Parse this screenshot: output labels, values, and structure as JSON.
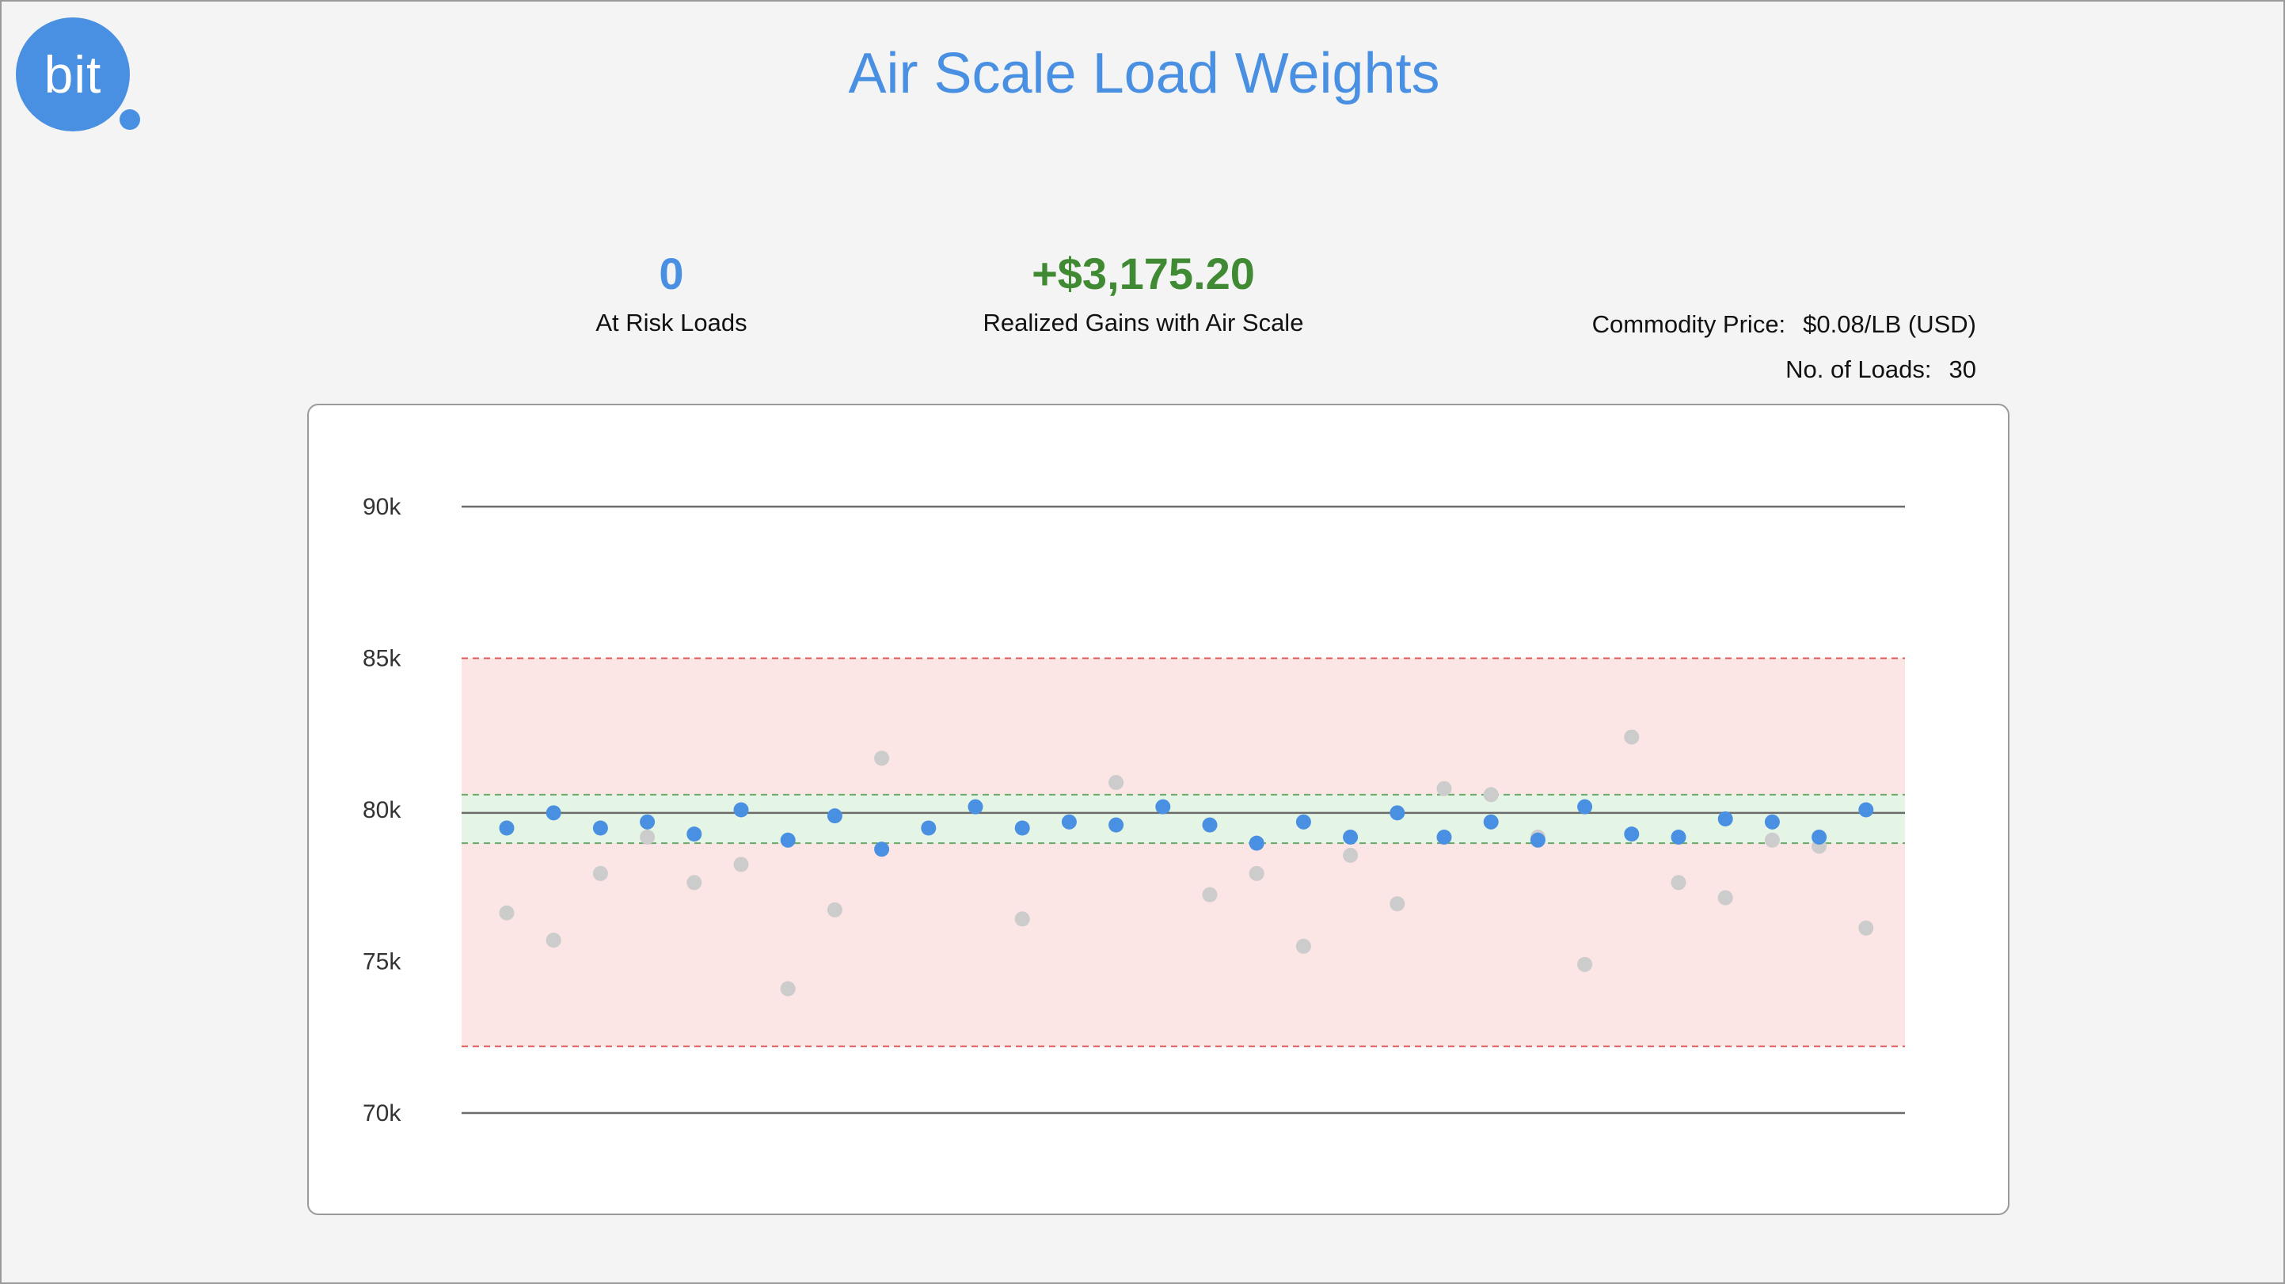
{
  "app": {
    "logo_text": "bit",
    "title": "Air Scale Load Weights"
  },
  "kpis": {
    "at_risk": {
      "value": "0",
      "label": "At Risk Loads"
    },
    "gains": {
      "value": "+$3,175.20",
      "label": "Realized Gains with Air Scale"
    }
  },
  "info": {
    "commodity_price_label": "Commodity Price:",
    "commodity_price_value": "$0.08/LB (USD)",
    "loads_label": "No. of Loads:",
    "loads_value": "30"
  },
  "colors": {
    "accent": "#4a90e2",
    "gain": "#3f8a32",
    "risk_band": "#fbe5e5",
    "risk_line": "#e05555",
    "target_band": "#e5f5e5",
    "target_line": "#6aa86a",
    "scale_point": "#cccccc"
  },
  "chart_data": {
    "type": "scatter",
    "title": "",
    "xlabel": "",
    "ylabel": "",
    "ylim": [
      70000,
      90000
    ],
    "y_ticks": [
      {
        "value": 90000,
        "label": "90k"
      },
      {
        "value": 85000,
        "label": "85k"
      },
      {
        "value": 80000,
        "label": "80k"
      },
      {
        "value": 75000,
        "label": "75k"
      },
      {
        "value": 70000,
        "label": "70k"
      }
    ],
    "reference_lines": {
      "upper_bound": 90000,
      "lower_bound": 70000,
      "target": 79900
    },
    "bands": {
      "risk_range": [
        72200,
        85000
      ],
      "target_range": [
        78900,
        80500
      ]
    },
    "x": [
      1,
      2,
      3,
      4,
      5,
      6,
      7,
      8,
      9,
      10,
      11,
      12,
      13,
      14,
      15,
      16,
      17,
      18,
      19,
      20,
      21,
      22,
      23,
      24,
      25,
      26,
      27,
      28,
      29,
      30,
      31
    ],
    "series": [
      {
        "values": [
          79400,
          79900,
          79400,
          79600,
          79200,
          80000,
          79000,
          79800,
          78700,
          79400,
          80100,
          79400,
          79600,
          79500,
          80100,
          79500,
          78900,
          79600,
          79100,
          79900,
          79100,
          79600,
          79000,
          80100,
          79200,
          79100,
          79700,
          79600,
          79100,
          80000,
          null
        ]
      },
      {
        "values": [
          76600,
          75700,
          77900,
          79100,
          77600,
          78200,
          74100,
          76700,
          81700,
          null,
          null,
          76400,
          null,
          80900,
          null,
          77200,
          77900,
          75500,
          78500,
          76900,
          80700,
          80500,
          79100,
          74900,
          82400,
          77600,
          77100,
          79000,
          78800,
          76100,
          null
        ]
      }
    ]
  }
}
